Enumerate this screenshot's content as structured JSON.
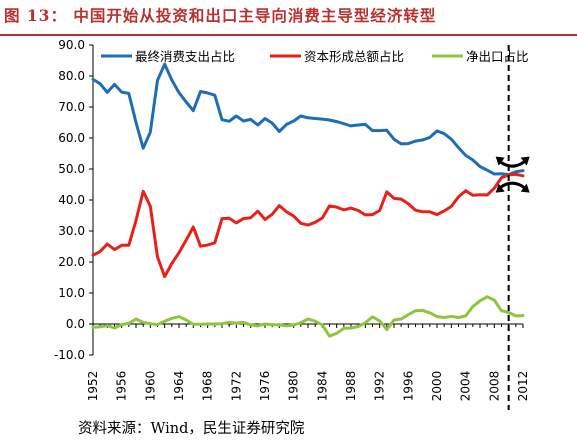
{
  "title": "图 13：  中国开始从投资和出口主导向消费主导型经济转型",
  "source": "资料来源：Wind，民生证券研究院",
  "chart_data": {
    "type": "line",
    "ylim": [
      -10,
      90
    ],
    "yticks": [
      "90.0",
      "80.0",
      "70.0",
      "60.0",
      "50.0",
      "40.0",
      "30.0",
      "20.0",
      "10.0",
      "0.0",
      "-10.0"
    ],
    "xlim": [
      1952,
      2012
    ],
    "xticks": [
      "1952",
      "1956",
      "1960",
      "1964",
      "1968",
      "1972",
      "1976",
      "1980",
      "1984",
      "1988",
      "1992",
      "1996",
      "2000",
      "2004",
      "2008",
      "2012"
    ],
    "legend_position": "top",
    "grid": false,
    "x": [
      1952,
      1953,
      1954,
      1955,
      1956,
      1957,
      1958,
      1959,
      1960,
      1961,
      1962,
      1963,
      1964,
      1965,
      1966,
      1967,
      1968,
      1969,
      1970,
      1971,
      1972,
      1973,
      1974,
      1975,
      1976,
      1977,
      1978,
      1979,
      1980,
      1981,
      1982,
      1983,
      1984,
      1985,
      1986,
      1987,
      1988,
      1989,
      1990,
      1991,
      1992,
      1993,
      1994,
      1995,
      1996,
      1997,
      1998,
      1999,
      2000,
      2001,
      2002,
      2003,
      2004,
      2005,
      2006,
      2007,
      2008,
      2009,
      2010,
      2011,
      2012
    ],
    "series": [
      {
        "name": "最终消费支出占比",
        "color": "#1f6db5",
        "values": [
          78.9,
          77.5,
          74.7,
          77.3,
          74.8,
          74.4,
          65.0,
          56.7,
          61.9,
          78.6,
          83.8,
          78.7,
          74.6,
          71.6,
          68.8,
          75.0,
          74.5,
          73.8,
          65.9,
          65.4,
          67.1,
          65.5,
          66.0,
          64.2,
          66.3,
          64.8,
          62.1,
          64.4,
          65.5,
          67.1,
          66.5,
          66.3,
          66.1,
          65.8,
          65.3,
          64.6,
          63.9,
          64.2,
          64.4,
          62.4,
          62.4,
          62.5,
          59.6,
          58.1,
          58.2,
          59.0,
          59.4,
          60.2,
          62.3,
          61.4,
          59.6,
          56.9,
          54.4,
          52.9,
          50.8,
          49.6,
          48.4,
          48.5,
          48.2,
          49.1,
          49.5
        ]
      },
      {
        "name": "资本形成总额占比",
        "color": "#e8201a",
        "values": [
          22.2,
          23.4,
          25.8,
          24.0,
          25.4,
          25.4,
          33.4,
          42.8,
          38.0,
          21.6,
          15.3,
          19.5,
          23.0,
          27.1,
          31.3,
          25.1,
          25.5,
          26.2,
          34.0,
          34.1,
          32.6,
          34.0,
          34.3,
          36.4,
          33.7,
          35.4,
          38.2,
          36.2,
          34.8,
          32.5,
          31.9,
          32.8,
          34.2,
          38.1,
          37.7,
          36.8,
          37.4,
          36.6,
          35.2,
          35.3,
          36.6,
          42.6,
          40.5,
          40.3,
          38.8,
          36.7,
          36.2,
          36.2,
          35.3,
          36.5,
          37.9,
          41.0,
          43.0,
          41.5,
          41.7,
          41.6,
          43.8,
          47.2,
          48.1,
          48.3,
          47.8
        ]
      },
      {
        "name": "净出口占比",
        "color": "#8cc63f",
        "values": [
          -1.1,
          -0.9,
          -0.5,
          -1.3,
          -0.2,
          0.2,
          1.6,
          0.5,
          0.1,
          -0.2,
          0.9,
          1.8,
          2.4,
          1.3,
          -0.1,
          -0.1,
          0.0,
          0.0,
          0.1,
          0.5,
          0.3,
          0.5,
          -0.3,
          -0.6,
          0.0,
          -0.2,
          -0.3,
          -0.6,
          -0.3,
          0.4,
          1.6,
          0.9,
          -0.3,
          -3.9,
          -3.0,
          -1.4,
          -1.3,
          -0.8,
          0.4,
          2.3,
          1.0,
          -1.8,
          1.3,
          1.6,
          3.0,
          4.3,
          4.4,
          3.6,
          2.4,
          2.1,
          2.5,
          2.1,
          2.6,
          5.6,
          7.5,
          8.8,
          7.7,
          4.3,
          3.7,
          2.6,
          2.7
        ]
      }
    ],
    "annotations": [
      {
        "type": "vertical-dashed-line",
        "x": 2010
      },
      {
        "type": "crossing-arrows",
        "x": 2010
      }
    ]
  }
}
